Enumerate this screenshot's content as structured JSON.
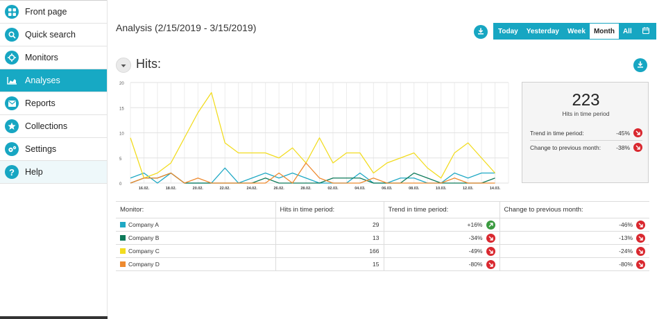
{
  "sidebar": {
    "items": [
      {
        "label": "Front page",
        "icon": "grid-icon"
      },
      {
        "label": "Quick search",
        "icon": "search-icon"
      },
      {
        "label": "Monitors",
        "icon": "crosshair-icon"
      },
      {
        "label": "Analyses",
        "icon": "area-chart-icon",
        "active": true
      },
      {
        "label": "Reports",
        "icon": "envelope-icon"
      },
      {
        "label": "Collections",
        "icon": "star-icon"
      },
      {
        "label": "Settings",
        "icon": "gears-icon"
      },
      {
        "label": "Help",
        "icon": "question-icon"
      }
    ]
  },
  "header": {
    "title": "Analysis (2/15/2019 - 3/15/2019)",
    "download_icon": "download-icon",
    "ranges": [
      "Today",
      "Yesterday",
      "Week",
      "Month",
      "All"
    ],
    "selected_range": "Month",
    "calendar_icon": "calendar-icon"
  },
  "hits": {
    "title": "Hits:",
    "collapse_icon": "chevron-down-icon",
    "download_icon": "download-icon"
  },
  "stats": {
    "total": "223",
    "total_caption": "Hits in time period",
    "trend_label": "Trend in time period:",
    "trend_value": "-45%",
    "change_label": "Change to previous month:",
    "change_value": "-38%"
  },
  "table": {
    "headers": [
      "Monitor:",
      "Hits in time period:",
      "Trend in time period:",
      "Change to previous month:"
    ],
    "rows": [
      {
        "name": "Company A",
        "color": "#1ea8c4",
        "hits": "29",
        "trend": "+16%",
        "trend_dir": "up",
        "change": "-46%",
        "change_dir": "down"
      },
      {
        "name": "Company B",
        "color": "#0d7a5a",
        "hits": "13",
        "trend": "-34%",
        "trend_dir": "down",
        "change": "-13%",
        "change_dir": "down"
      },
      {
        "name": "Company C",
        "color": "#f2dc1f",
        "hits": "166",
        "trend": "-49%",
        "trend_dir": "down",
        "change": "-24%",
        "change_dir": "down"
      },
      {
        "name": "Company D",
        "color": "#ee8a2f",
        "hits": "15",
        "trend": "-80%",
        "trend_dir": "down",
        "change": "-80%",
        "change_dir": "down"
      }
    ]
  },
  "chart_data": {
    "type": "line",
    "ylim": [
      0,
      20
    ],
    "yticks": [
      0,
      5,
      10,
      15,
      20
    ],
    "x": [
      "15.02.",
      "16.02.",
      "17.02.",
      "18.02.",
      "19.02.",
      "20.02.",
      "21.02.",
      "22.02.",
      "23.02.",
      "24.02.",
      "25.02.",
      "26.02.",
      "27.02.",
      "28.02.",
      "01.03.",
      "02.03.",
      "03.03.",
      "04.03.",
      "05.03.",
      "06.03.",
      "07.03.",
      "08.03.",
      "09.03.",
      "10.03.",
      "11.03.",
      "12.03.",
      "13.03.",
      "14.03.",
      "15.03."
    ],
    "xtick_labels": [
      "16.02.",
      "18.02.",
      "20.02.",
      "22.02.",
      "24.02.",
      "26.02.",
      "28.02.",
      "02.03.",
      "04.03.",
      "06.03.",
      "08.03.",
      "10.03.",
      "12.03.",
      "14.03."
    ],
    "grid": true,
    "series": [
      {
        "name": "Company A",
        "color": "#1ea8c4",
        "values": [
          1,
          2,
          0,
          2,
          0,
          0,
          0,
          3,
          0,
          1,
          2,
          1,
          2,
          1,
          0,
          0,
          0,
          2,
          0,
          0,
          1,
          1,
          0,
          0,
          2,
          1,
          2,
          2,
          null
        ]
      },
      {
        "name": "Company B",
        "color": "#0d7a5a",
        "values": [
          0,
          1,
          1,
          2,
          0,
          0,
          0,
          0,
          0,
          0,
          1,
          0,
          0,
          0,
          0,
          1,
          1,
          1,
          0,
          0,
          0,
          2,
          1,
          0,
          0,
          0,
          0,
          1,
          null
        ]
      },
      {
        "name": "Company C",
        "color": "#f2dc1f",
        "values": [
          9,
          1,
          2,
          4,
          9,
          14,
          18,
          8,
          6,
          6,
          6,
          5,
          7,
          4,
          9,
          4,
          6,
          6,
          2,
          4,
          5,
          6,
          3,
          1,
          6,
          8,
          5,
          2,
          null
        ]
      },
      {
        "name": "Company D",
        "color": "#ee8a2f",
        "values": [
          0,
          1,
          1,
          2,
          0,
          1,
          0,
          0,
          0,
          0,
          0,
          2,
          0,
          4,
          1,
          0,
          0,
          0,
          1,
          0,
          0,
          0,
          0,
          0,
          1,
          0,
          0,
          0,
          null
        ]
      }
    ]
  }
}
